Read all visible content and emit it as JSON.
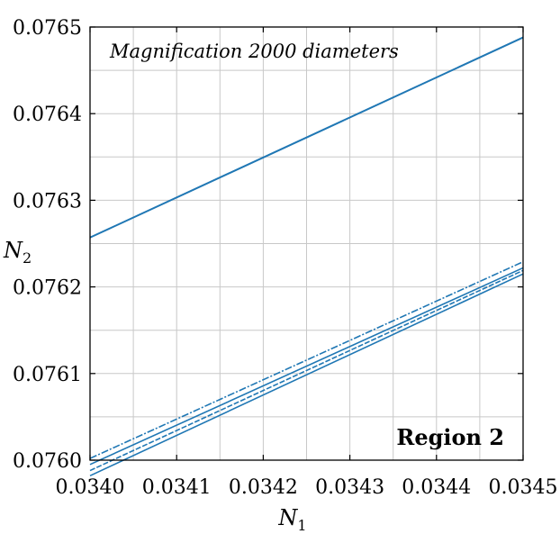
{
  "chart_data": {
    "type": "line",
    "title": "",
    "xlabel": "N",
    "xlabel_sub": "1",
    "ylabel": "N",
    "ylabel_sub": "2",
    "xlim": [
      0.034,
      0.0345
    ],
    "ylim": [
      0.076,
      0.0765
    ],
    "xticks": [
      "0.0340",
      "0.0341",
      "0.0342",
      "0.0343",
      "0.0344",
      "0.0345"
    ],
    "yticks": [
      "0.0760",
      "0.0761",
      "0.0762",
      "0.0763",
      "0.0764",
      "0.0765"
    ],
    "grid": true,
    "line_color": "#1f77b4",
    "annotations": {
      "magnification": "Magnification 2000 diameters",
      "region": "Region 2"
    },
    "series": [
      {
        "x": [
          0.034,
          0.0345
        ],
        "y": [
          0.076257,
          0.076488
        ]
      },
      {
        "x": [
          0.034,
          0.0345
        ],
        "y": [
          0.076002,
          0.076229
        ]
      },
      {
        "x": [
          0.034,
          0.0345
        ],
        "y": [
          0.075995,
          0.076222
        ]
      },
      {
        "x": [
          0.034,
          0.0345
        ],
        "y": [
          0.075988,
          0.076219
        ]
      },
      {
        "x": [
          0.034,
          0.0345
        ],
        "y": [
          0.075982,
          0.076215
        ]
      }
    ]
  }
}
